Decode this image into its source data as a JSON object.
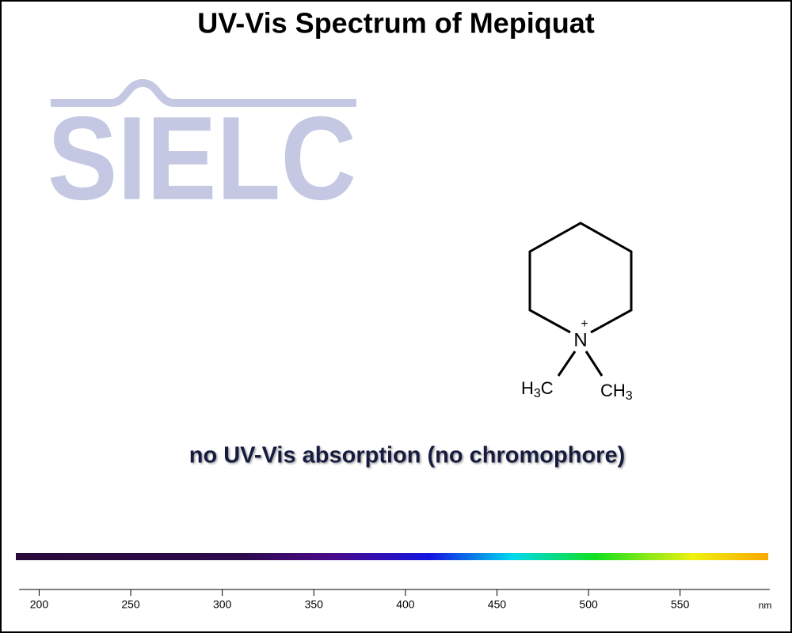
{
  "chart_data": {
    "type": "spectrum",
    "title": "UV-Vis Spectrum of Mepiquat",
    "logo": "SIELC",
    "annotation": "no UV-Vis absorption (no chromophore)",
    "x_label": "nm",
    "xlim": [
      189,
      599
    ],
    "xticks": [
      200,
      250,
      300,
      350,
      400,
      450,
      500,
      550
    ]
  },
  "structure": {
    "n_label": "N",
    "charge": "+",
    "left_methyl": [
      "H",
      "3",
      "C"
    ],
    "right_methyl": [
      "CH",
      "3"
    ]
  }
}
